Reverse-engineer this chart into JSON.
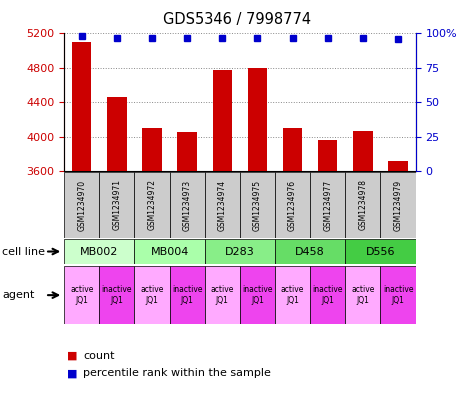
{
  "title": "GDS5346 / 7998774",
  "samples": [
    "GSM1234970",
    "GSM1234971",
    "GSM1234972",
    "GSM1234973",
    "GSM1234974",
    "GSM1234975",
    "GSM1234976",
    "GSM1234977",
    "GSM1234978",
    "GSM1234979"
  ],
  "counts": [
    5100,
    4460,
    4100,
    4050,
    4770,
    4800,
    4100,
    3960,
    4070,
    3720
  ],
  "percentiles": [
    98,
    97,
    97,
    97,
    97,
    97,
    97,
    97,
    97,
    96
  ],
  "ylim": [
    3600,
    5200
  ],
  "yticks": [
    3600,
    4000,
    4400,
    4800,
    5200
  ],
  "right_yticks": [
    0,
    25,
    50,
    75,
    100
  ],
  "right_ylim": [
    0,
    100
  ],
  "bar_color": "#cc0000",
  "dot_color": "#0000cc",
  "sample_box_color": "#cccccc",
  "cell_lines": [
    {
      "label": "MB002",
      "cols": [
        0,
        1
      ],
      "color": "#ccffcc"
    },
    {
      "label": "MB004",
      "cols": [
        2,
        3
      ],
      "color": "#aaffaa"
    },
    {
      "label": "D283",
      "cols": [
        4,
        5
      ],
      "color": "#88ee88"
    },
    {
      "label": "D458",
      "cols": [
        6,
        7
      ],
      "color": "#66dd66"
    },
    {
      "label": "D556",
      "cols": [
        8,
        9
      ],
      "color": "#44cc44"
    }
  ],
  "agents": [
    {
      "label": "active\nJQ1",
      "col": 0,
      "color": "#ffaaff"
    },
    {
      "label": "inactive\nJQ1",
      "col": 1,
      "color": "#ee44ee"
    },
    {
      "label": "active\nJQ1",
      "col": 2,
      "color": "#ffaaff"
    },
    {
      "label": "inactive\nJQ1",
      "col": 3,
      "color": "#ee44ee"
    },
    {
      "label": "active\nJQ1",
      "col": 4,
      "color": "#ffaaff"
    },
    {
      "label": "inactive\nJQ1",
      "col": 5,
      "color": "#ee44ee"
    },
    {
      "label": "active\nJQ1",
      "col": 6,
      "color": "#ffaaff"
    },
    {
      "label": "inactive\nJQ1",
      "col": 7,
      "color": "#ee44ee"
    },
    {
      "label": "active\nJQ1",
      "col": 8,
      "color": "#ffaaff"
    },
    {
      "label": "inactive\nJQ1",
      "col": 9,
      "color": "#ee44ee"
    }
  ],
  "left_label_color": "#cc0000",
  "right_label_color": "#0000cc",
  "grid_color": "#888888",
  "left_label": "cell line",
  "agent_label": "agent",
  "legend_count": "count",
  "legend_pct": "percentile rank within the sample"
}
